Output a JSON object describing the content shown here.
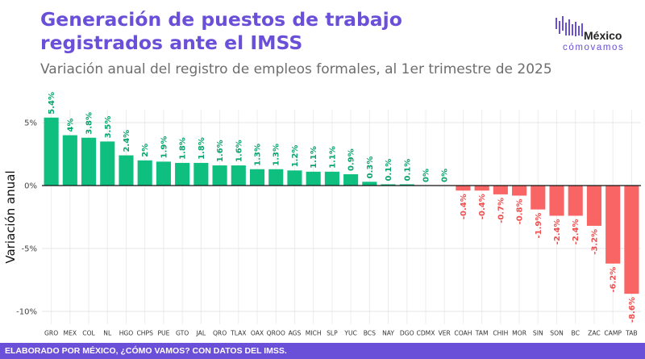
{
  "header": {
    "title": "Generación de puestos de trabajo registrados ante el IMSS",
    "subtitle": "Variación anual del registro de empleos formales, al 1er trimestre de 2025"
  },
  "logo": {
    "word": "México",
    "sub": "cómovamos"
  },
  "footer": {
    "text": "ELABORADO POR MÉXICO, ¿CÓMO VAMOS? CON DATOS DEL IMSS."
  },
  "colors": {
    "positive": "#0fbf7f",
    "negative": "#f96565",
    "title": "#6a4fd8"
  },
  "chart_data": {
    "type": "bar",
    "title": "Generación de puestos de trabajo registrados ante el IMSS",
    "subtitle": "Variación anual del registro de empleos formales, al 1er trimestre de 2025",
    "ylabel": "Variación anual",
    "xlabel": "",
    "ylim": [
      -11,
      6
    ],
    "yticks": [
      5,
      0,
      -5,
      -10
    ],
    "ytick_labels": [
      "5%",
      "0%",
      "-5%",
      "-10%"
    ],
    "grid": true,
    "categories": [
      "GRO",
      "MEX",
      "COL",
      "NL",
      "HGO",
      "CHPS",
      "PUE",
      "GTO",
      "JAL",
      "QRO",
      "TLAX",
      "OAX",
      "QROO",
      "AGS",
      "MICH",
      "SLP",
      "YUC",
      "BCS",
      "NAY",
      "DGO",
      "CDMX",
      "VER",
      "COAH",
      "TAM",
      "CHIH",
      "MOR",
      "SIN",
      "SON",
      "BC",
      "ZAC",
      "CAMP",
      "TAB"
    ],
    "values": [
      5.4,
      4.0,
      3.8,
      3.5,
      2.4,
      2.0,
      1.9,
      1.8,
      1.8,
      1.6,
      1.6,
      1.3,
      1.3,
      1.2,
      1.1,
      1.1,
      0.9,
      0.3,
      0.1,
      0.1,
      0.0,
      0.0,
      -0.4,
      -0.4,
      -0.7,
      -0.8,
      -1.9,
      -2.4,
      -2.4,
      -3.2,
      -6.2,
      -8.6
    ],
    "labels": [
      "5.4%",
      "4%",
      "3.8%",
      "3.5%",
      "2.4%",
      "2%",
      "1.9%",
      "1.8%",
      "1.8%",
      "1.6%",
      "1.6%",
      "1.3%",
      "1.3%",
      "1.2%",
      "1.1%",
      "1.1%",
      "0.9%",
      "0.3%",
      "0.1%",
      "0.1%",
      "0%",
      "0%",
      "-0.4%",
      "-0.4%",
      "-0.7%",
      "-0.8%",
      "-1.9%",
      "-2.4%",
      "-2.4%",
      "-3.2%",
      "-6.2%",
      "-8.6%"
    ]
  }
}
